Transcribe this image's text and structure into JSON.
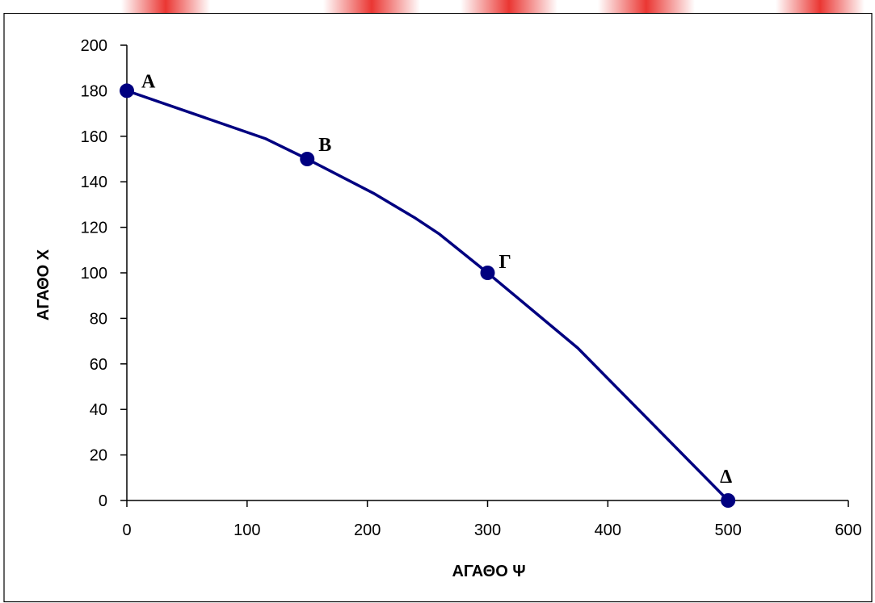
{
  "colors": {
    "background": "#ffffff",
    "border": "#000000",
    "series": "#000080",
    "top_stripe": "#e8201c"
  },
  "chart_data": {
    "type": "line",
    "title": "",
    "xlabel": "ΑΓΑΘΟ Ψ",
    "ylabel": "ΑΓΑΘΟ Χ",
    "xlim": [
      0,
      600
    ],
    "ylim": [
      0,
      200
    ],
    "xticks": [
      0,
      100,
      200,
      300,
      400,
      500,
      600
    ],
    "yticks": [
      0,
      20,
      40,
      60,
      80,
      100,
      120,
      140,
      160,
      180,
      200
    ],
    "grid": false,
    "legend": "none",
    "curve": [
      {
        "x": 0,
        "y": 180
      },
      {
        "x": 115,
        "y": 159
      },
      {
        "x": 150,
        "y": 150
      },
      {
        "x": 205,
        "y": 135
      },
      {
        "x": 240,
        "y": 124
      },
      {
        "x": 260,
        "y": 117
      },
      {
        "x": 300,
        "y": 100
      },
      {
        "x": 375,
        "y": 67
      },
      {
        "x": 500,
        "y": 0
      }
    ],
    "points": [
      {
        "label": "Α",
        "x": 0,
        "y": 180
      },
      {
        "label": "Β",
        "x": 150,
        "y": 150
      },
      {
        "label": "Γ",
        "x": 300,
        "y": 100
      },
      {
        "label": "Δ",
        "x": 500,
        "y": 0
      }
    ]
  }
}
